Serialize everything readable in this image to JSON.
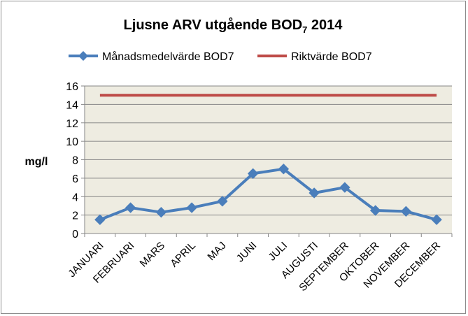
{
  "chart_data": {
    "type": "line",
    "title": "Ljusne ARV utgående BOD",
    "title_subscript": "7",
    "title_suffix": " 2014",
    "ylabel": "mg/l",
    "xlabel": "",
    "ylim": [
      0,
      16
    ],
    "ytick_step": 2,
    "grid": true,
    "legend_position": "top",
    "plot_background": "#eeece1",
    "categories": [
      "JANUARI",
      "FEBRUARI",
      "MARS",
      "APRIL",
      "MAJ",
      "JUNI",
      "JULI",
      "AUGUSTI",
      "SEPTEMBER",
      "OKTOBER",
      "NOVEMBER",
      "DECEMBER"
    ],
    "series": [
      {
        "name": "Månadsmedelvärde BOD7",
        "color": "#4a7ebb",
        "marker": "diamond",
        "values": [
          1.5,
          2.8,
          2.3,
          2.8,
          3.5,
          6.5,
          7.0,
          4.4,
          5.0,
          2.5,
          2.4,
          1.5
        ]
      },
      {
        "name": "Riktvärde BOD7",
        "color": "#be4b48",
        "marker": "none",
        "values": [
          15,
          15,
          15,
          15,
          15,
          15,
          15,
          15,
          15,
          15,
          15,
          15
        ]
      }
    ]
  }
}
